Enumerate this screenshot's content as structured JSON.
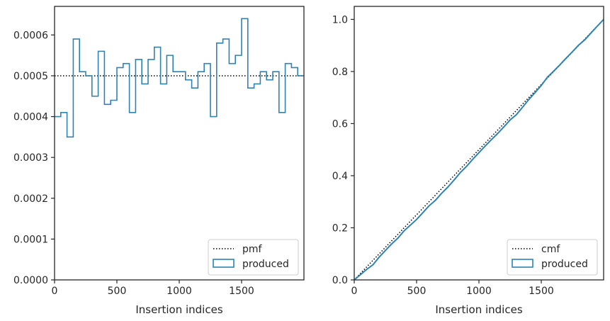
{
  "colors": {
    "series": "#2f83b3",
    "reference": "#000000",
    "axis": "#262626",
    "legend_border": "#cccccc"
  },
  "chart_data": [
    {
      "type": "step",
      "xlabel": "Insertion indices",
      "xlim": [
        0,
        2000
      ],
      "ylim": [
        0,
        0.00067
      ],
      "xticks": [
        0,
        500,
        1000,
        1500
      ],
      "yticks": [
        "0.0000",
        "0.0001",
        "0.0002",
        "0.0003",
        "0.0004",
        "0.0005",
        "0.0006"
      ],
      "yticks_values": [
        0,
        0.0001,
        0.0002,
        0.0003,
        0.0004,
        0.0005,
        0.0006
      ],
      "legend": {
        "placement": "lower right",
        "entries": [
          "pmf",
          "produced"
        ]
      },
      "reference": {
        "name": "pmf",
        "style": "dotted",
        "value": 0.0005
      },
      "produced": {
        "name": "produced",
        "bin_edges": [
          0,
          50,
          100,
          150,
          200,
          250,
          300,
          350,
          400,
          450,
          500,
          550,
          600,
          650,
          700,
          750,
          800,
          850,
          900,
          950,
          1000,
          1050,
          1100,
          1150,
          1200,
          1250,
          1300,
          1350,
          1400,
          1450,
          1500,
          1550,
          1600,
          1650,
          1700,
          1750,
          1800,
          1850,
          1900,
          1950,
          2000
        ],
        "values": [
          0.0004,
          0.00041,
          0.00035,
          0.00059,
          0.00051,
          0.0005,
          0.00045,
          0.00056,
          0.00043,
          0.00044,
          0.00052,
          0.00053,
          0.00041,
          0.00054,
          0.00048,
          0.00054,
          0.00057,
          0.00048,
          0.00055,
          0.00051,
          0.00051,
          0.00049,
          0.00047,
          0.00051,
          0.00053,
          0.0004,
          0.00058,
          0.00059,
          0.00053,
          0.00055,
          0.00064,
          0.00047,
          0.00048,
          0.00051,
          0.00049,
          0.00051,
          0.00041,
          0.00053,
          0.00052,
          0.0005
        ]
      }
    },
    {
      "type": "line",
      "xlabel": "Insertion indices",
      "xlim": [
        0,
        2000
      ],
      "ylim": [
        0,
        1.05
      ],
      "xticks": [
        0,
        500,
        1000,
        1500
      ],
      "yticks": [
        "0.0",
        "0.2",
        "0.4",
        "0.6",
        "0.8",
        "1.0"
      ],
      "yticks_values": [
        0,
        0.2,
        0.4,
        0.6,
        0.8,
        1.0
      ],
      "legend": {
        "placement": "lower right",
        "entries": [
          "cmf",
          "produced"
        ]
      },
      "reference": {
        "name": "cmf",
        "style": "dotted",
        "x": [
          0,
          2000
        ],
        "y": [
          0,
          1.0
        ]
      },
      "produced": {
        "name": "produced",
        "x": [
          0,
          50,
          100,
          150,
          200,
          250,
          300,
          350,
          400,
          450,
          500,
          550,
          600,
          650,
          700,
          750,
          800,
          850,
          900,
          950,
          1000,
          1050,
          1100,
          1150,
          1200,
          1250,
          1300,
          1350,
          1400,
          1450,
          1500,
          1550,
          1600,
          1650,
          1700,
          1750,
          1800,
          1850,
          1900,
          1950,
          2000
        ],
        "y": [
          0,
          0.02,
          0.0405,
          0.058,
          0.0875,
          0.113,
          0.138,
          0.1605,
          0.1885,
          0.21,
          0.232,
          0.258,
          0.2845,
          0.305,
          0.332,
          0.356,
          0.383,
          0.4115,
          0.4355,
          0.463,
          0.4885,
          0.514,
          0.5385,
          0.562,
          0.5875,
          0.614,
          0.634,
          0.663,
          0.6925,
          0.719,
          0.7465,
          0.7785,
          0.802,
          0.826,
          0.8515,
          0.876,
          0.9015,
          0.922,
          0.9485,
          0.9745,
          1.0
        ]
      }
    }
  ]
}
